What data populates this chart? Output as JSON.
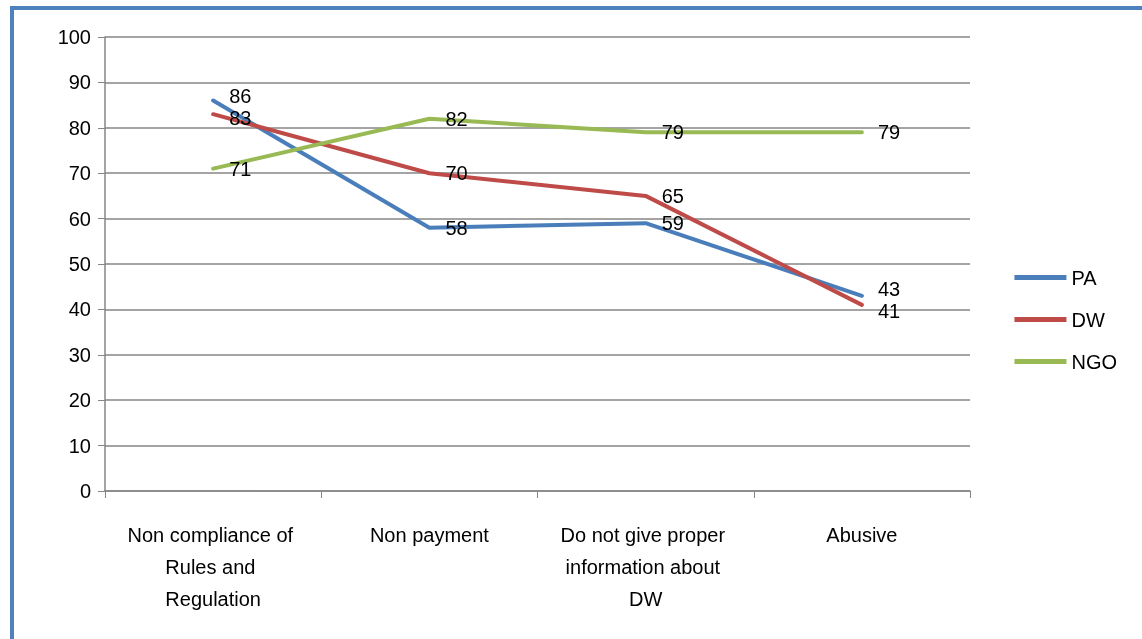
{
  "chart_data": {
    "type": "line",
    "categories": [
      "Non compliance of Rules and Regulation",
      "Non payment",
      "Do not give proper information about DW",
      "Abusive"
    ],
    "series": [
      {
        "name": "PA",
        "color": "#4a7ebb",
        "values": [
          86,
          58,
          59,
          43
        ]
      },
      {
        "name": "DW",
        "color": "#be4b48",
        "values": [
          83,
          70,
          65,
          41
        ]
      },
      {
        "name": "NGO",
        "color": "#98b954",
        "values": [
          71,
          82,
          79,
          79
        ]
      }
    ],
    "ylim": [
      0,
      100
    ],
    "yticks": [
      0,
      10,
      20,
      30,
      40,
      50,
      60,
      70,
      80,
      90,
      100
    ],
    "grid": "y",
    "legend": "right",
    "data_labels": true,
    "marker": "none",
    "line_style": "solid"
  }
}
